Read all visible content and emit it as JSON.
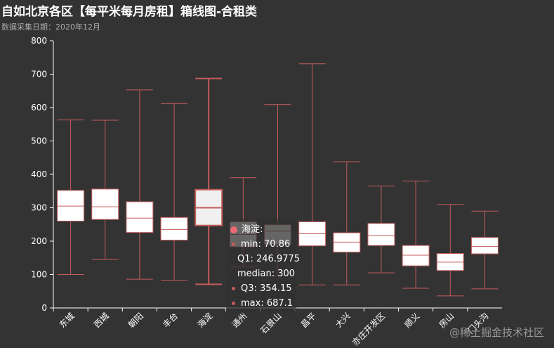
{
  "title": "自如北京各区【每平米每月房租】箱线图-合租类",
  "subtitle": "数据采集日期：2020年12月",
  "watermark": "@稀土掘金技术社区",
  "colors": {
    "background": "#333333",
    "box_stroke": "#c45c5c",
    "box_fill": "#ffffff",
    "highlight_fill": "#f0f0f0",
    "axis": "#ffffff"
  },
  "tooltip": {
    "name": "海淀:",
    "rows": [
      "min: 70.86",
      "Q1: 246.9775",
      "median: 300",
      "Q3: 354.15",
      "max: 687.1"
    ]
  },
  "chart_data": {
    "type": "boxplot",
    "title": "自如北京各区【每平米每月房租】箱线图-合租类",
    "subtitle": "数据采集日期：2020年12月",
    "ylim": [
      0,
      800
    ],
    "yticks": [
      0,
      100,
      200,
      300,
      400,
      500,
      600,
      700,
      800
    ],
    "grid": false,
    "highlighted": "海淀",
    "categories": [
      "东城",
      "西城",
      "朝阳",
      "丰台",
      "海淀",
      "通州",
      "石景山",
      "昌平",
      "大兴",
      "亦庄开发区",
      "顺义",
      "房山",
      "门头沟"
    ],
    "boxes": [
      {
        "min": 100,
        "q1": 260,
        "median": 305,
        "q3": 352,
        "max": 563
      },
      {
        "min": 145,
        "q1": 265,
        "median": 303,
        "q3": 356,
        "max": 562
      },
      {
        "min": 86,
        "q1": 226,
        "median": 269,
        "q3": 318,
        "max": 653
      },
      {
        "min": 83,
        "q1": 203,
        "median": 235,
        "q3": 271,
        "max": 612
      },
      {
        "min": 70.86,
        "q1": 246.9775,
        "median": 300,
        "q3": 354.15,
        "max": 687.1
      },
      {
        "min": 123,
        "q1": 183,
        "median": 220,
        "q3": 258,
        "max": 390
      },
      {
        "min": 98,
        "q1": 190,
        "median": 230,
        "q3": 249,
        "max": 609
      },
      {
        "min": 69,
        "q1": 186,
        "median": 222,
        "q3": 258,
        "max": 731
      },
      {
        "min": 69,
        "q1": 167,
        "median": 197,
        "q3": 225,
        "max": 438
      },
      {
        "min": 105,
        "q1": 187,
        "median": 216,
        "q3": 253,
        "max": 365
      },
      {
        "min": 59,
        "q1": 126,
        "median": 158,
        "q3": 187,
        "max": 380
      },
      {
        "min": 36,
        "q1": 112,
        "median": 137,
        "q3": 163,
        "max": 310
      },
      {
        "min": 57,
        "q1": 162,
        "median": 184,
        "q3": 211,
        "max": 290
      }
    ]
  }
}
